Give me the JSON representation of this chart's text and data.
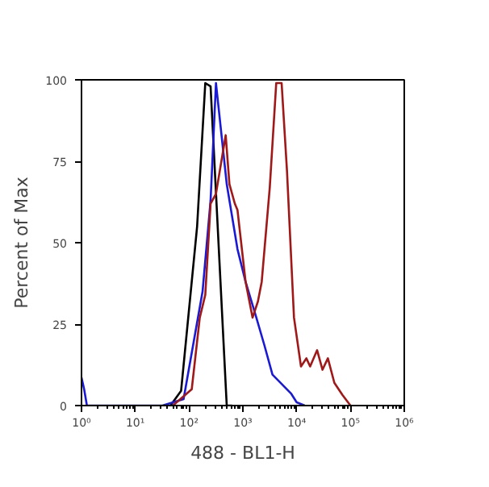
{
  "chart_data": {
    "type": "line",
    "xlabel": "488 - BL1-H",
    "ylabel": "Percent of Max",
    "log": "x",
    "xlim": [
      1,
      1000000
    ],
    "ylim": [
      0,
      100
    ],
    "xticks": [
      {
        "value": 1,
        "label": "10⁰"
      },
      {
        "value": 10,
        "label": "10¹"
      },
      {
        "value": 100,
        "label": "10²"
      },
      {
        "value": 1000,
        "label": "10³"
      },
      {
        "value": 10000,
        "label": "10⁴"
      },
      {
        "value": 100000,
        "label": "10⁵"
      },
      {
        "value": 1000000,
        "label": "10⁶"
      }
    ],
    "yticks": [
      0,
      25,
      50,
      75,
      100
    ],
    "grid": false,
    "marker": "none",
    "line_style": "solid",
    "series": [
      {
        "color": "#000000",
        "x": [
          45,
          71,
          141,
          200,
          251,
          501,
          631
        ],
        "values": [
          0,
          4.5,
          55,
          99,
          98,
          0,
          0
        ]
      },
      {
        "color": "#1a1ad6",
        "x": [
          1,
          1.12,
          1.26,
          32,
          79,
          178,
          251,
          316,
          501,
          794,
          1122,
          1778,
          2512,
          3548,
          7943,
          10000,
          14125
        ],
        "values": [
          8.6,
          5,
          0,
          0,
          2,
          35,
          63,
          99,
          68,
          48,
          38,
          27,
          18.5,
          9.5,
          3.6,
          1,
          0
        ]
      },
      {
        "color": "#a01818",
        "x": [
          50,
          112,
          158,
          200,
          251,
          316,
          479,
          562,
          708,
          794,
          1122,
          1514,
          1905,
          2239,
          3162,
          4169,
          5248,
          6607,
          8913,
          12023,
          15136,
          17783,
          23988,
          30200,
          38019,
          50119,
          70795,
          100000
        ],
        "values": [
          0,
          5,
          27,
          34,
          62,
          65,
          83,
          68,
          62,
          60,
          38,
          27,
          32,
          38,
          67,
          99,
          99,
          72,
          27,
          12,
          14.5,
          12,
          17,
          11,
          14.5,
          7,
          3.3,
          0
        ]
      }
    ]
  }
}
